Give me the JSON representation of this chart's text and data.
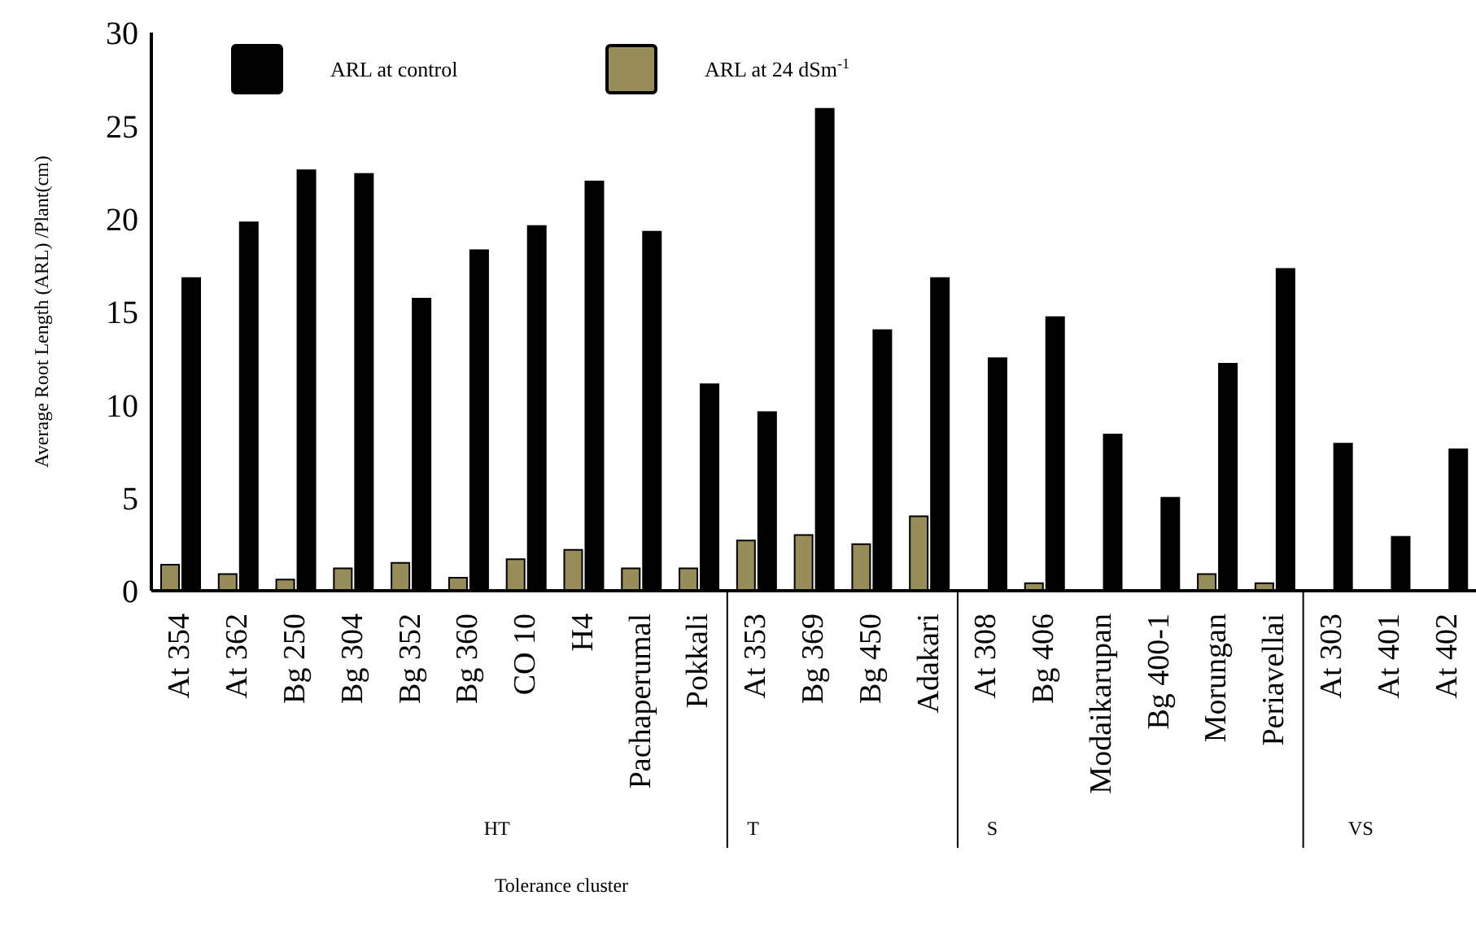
{
  "chart_data": {
    "type": "bar",
    "xlabel": "Tolerance cluster",
    "ylabel": "Average Root Length (ARL) /Plant(cm)",
    "categories": [
      "At 354",
      "At 362",
      "Bg 250",
      "Bg 304",
      "Bg 352",
      "Bg 360",
      "CO 10",
      "H4",
      "Pachaperumal",
      "Pokkali",
      "At 353",
      "Bg 369",
      "Bg 450",
      "Adakari",
      "At 308",
      "Bg 406",
      "Modaikarupan",
      "Bg 400-1",
      "Morungan",
      "Periavellai",
      "At 303",
      "At 401",
      "At 402"
    ],
    "series": [
      {
        "name": "ARL at control",
        "color": "#000000",
        "values": [
          16.8,
          19.8,
          22.6,
          22.4,
          15.7,
          18.3,
          19.6,
          22.0,
          19.3,
          11.1,
          9.6,
          25.9,
          14.0,
          16.8,
          12.5,
          14.7,
          8.4,
          5.0,
          12.2,
          17.3,
          7.9,
          2.9,
          7.6
        ]
      },
      {
        "name": "ARL at 24 dSm$^{-1}$",
        "color": "#978d5b",
        "values": [
          1.4,
          0.9,
          0.6,
          1.2,
          1.5,
          0.7,
          1.7,
          2.2,
          1.2,
          1.2,
          2.7,
          3.0,
          2.5,
          4.0,
          0,
          0.4,
          0,
          0,
          0.9,
          0.4,
          0,
          0,
          0
        ]
      }
    ],
    "ylim": [
      0,
      30
    ],
    "yticks": [
      0,
      5,
      10,
      15,
      20,
      25,
      30
    ],
    "grid": false,
    "legend": "top left",
    "annotations": [
      "HT",
      "T",
      "S",
      "VS"
    ]
  }
}
